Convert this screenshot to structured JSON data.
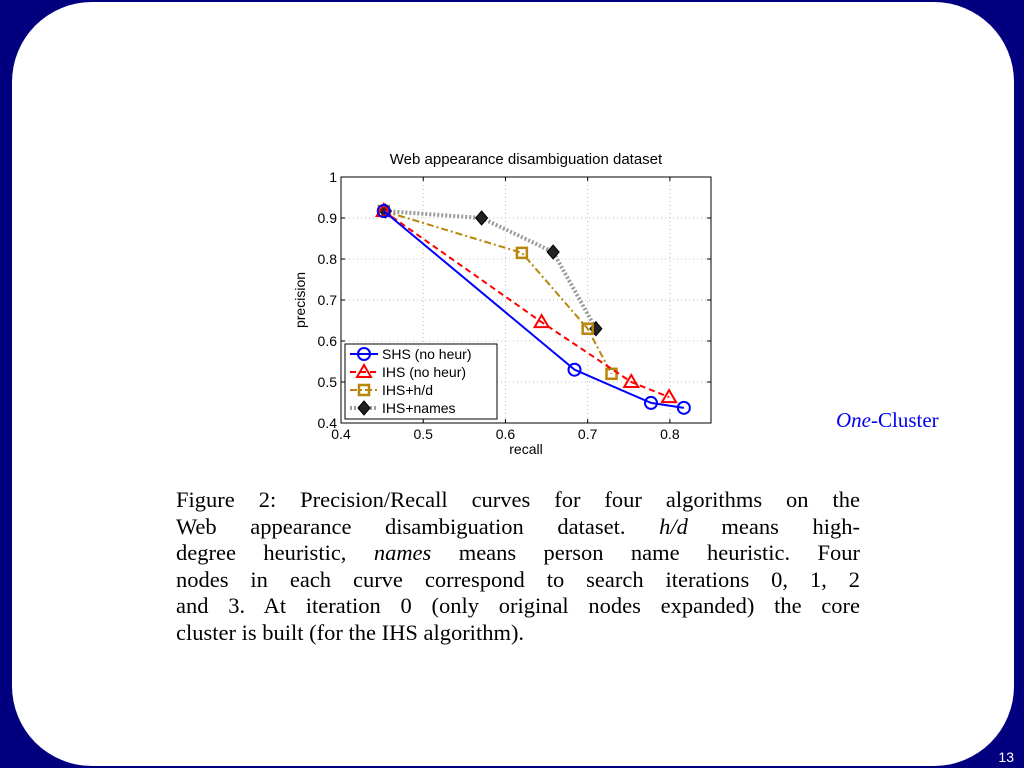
{
  "slide": {
    "side_label_em": "One",
    "side_label_rest": "-Cluster",
    "page_number": "13"
  },
  "caption": {
    "lines": [
      [
        "Figure 2: Precision/Recall curves for four algorithms on the"
      ],
      [
        "Web appearance disambiguation dataset.  ",
        "h/d",
        " means high-"
      ],
      [
        "degree heuristic, ",
        "names",
        " means person name heuristic.  Four"
      ],
      [
        "nodes in each curve correspond to search iterations 0, 1, 2"
      ],
      [
        "and 3. At iteration 0 (only original nodes expanded) the core"
      ],
      [
        "cluster is built (for the IHS algorithm)."
      ]
    ]
  },
  "chart_data": {
    "type": "line",
    "title": "Web appearance disambiguation dataset",
    "xlabel": "recall",
    "ylabel": "precision",
    "xlim": [
      0.4,
      0.85
    ],
    "ylim": [
      0.4,
      1.0
    ],
    "xticks": [
      0.4,
      0.5,
      0.6,
      0.7,
      0.8
    ],
    "xtick_labels": [
      "0.4",
      "0.5",
      "0.6",
      "0.7",
      "0.8"
    ],
    "yticks": [
      0.4,
      0.5,
      0.6,
      0.7,
      0.8,
      0.9,
      1.0
    ],
    "ytick_labels": [
      "0.4",
      "0.5",
      "0.6",
      "0.7",
      "0.8",
      "0.9",
      "1"
    ],
    "grid": true,
    "legend_position": "bottom-left",
    "series": [
      {
        "name": "SHS (no heur)",
        "color": "#0000ff",
        "line": "solid",
        "marker": "circle",
        "x": [
          0.452,
          0.684,
          0.777,
          0.817
        ],
        "y": [
          0.917,
          0.53,
          0.449,
          0.437
        ]
      },
      {
        "name": "IHS (no heur)",
        "color": "#ff0000",
        "line": "dashed",
        "marker": "triangle",
        "x": [
          0.452,
          0.644,
          0.753,
          0.799
        ],
        "y": [
          0.917,
          0.646,
          0.5,
          0.463
        ]
      },
      {
        "name": "IHS+h/d",
        "color": "#b8860b",
        "line": "dashdot",
        "marker": "square",
        "x": [
          0.452,
          0.62,
          0.7,
          0.729
        ],
        "y": [
          0.917,
          0.815,
          0.63,
          0.52
        ]
      },
      {
        "name": "IHS+names",
        "color": "#999999",
        "line": "dotted",
        "marker": "diamond",
        "x": [
          0.454,
          0.571,
          0.658,
          0.71
        ],
        "y": [
          0.917,
          0.9,
          0.817,
          0.63
        ]
      }
    ]
  }
}
